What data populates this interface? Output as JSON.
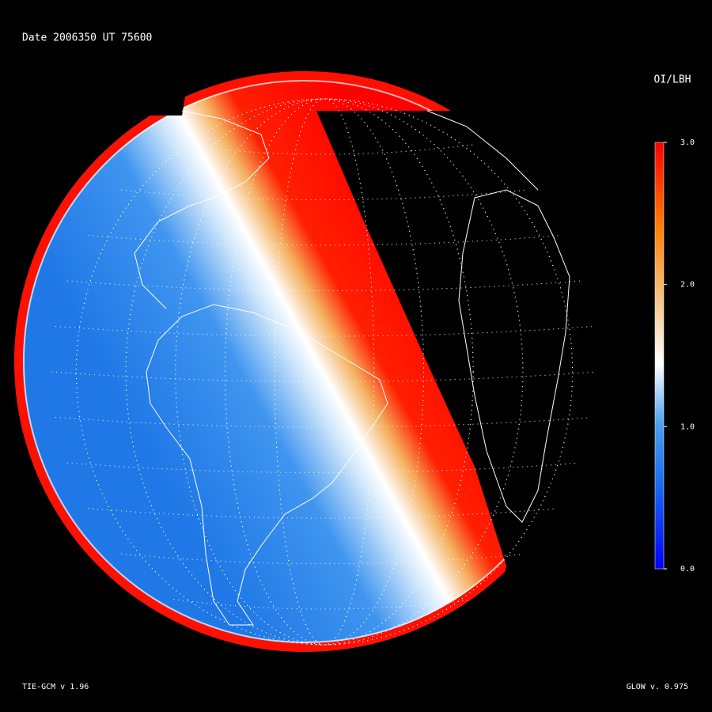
{
  "header": {
    "date_text": "Date 2006350   UT 75600"
  },
  "colorbar": {
    "label": "OI/LBH",
    "range": [
      0,
      3
    ],
    "ticks": [
      {
        "value": 3,
        "label": "3.0"
      },
      {
        "value": 2,
        "label": "2.0"
      },
      {
        "value": 1,
        "label": "1.0"
      },
      {
        "value": 0,
        "label": "0.0"
      }
    ]
  },
  "footer": {
    "left": "TIE-GCM v 1.96",
    "right": "GLOW v. 0.975"
  }
}
